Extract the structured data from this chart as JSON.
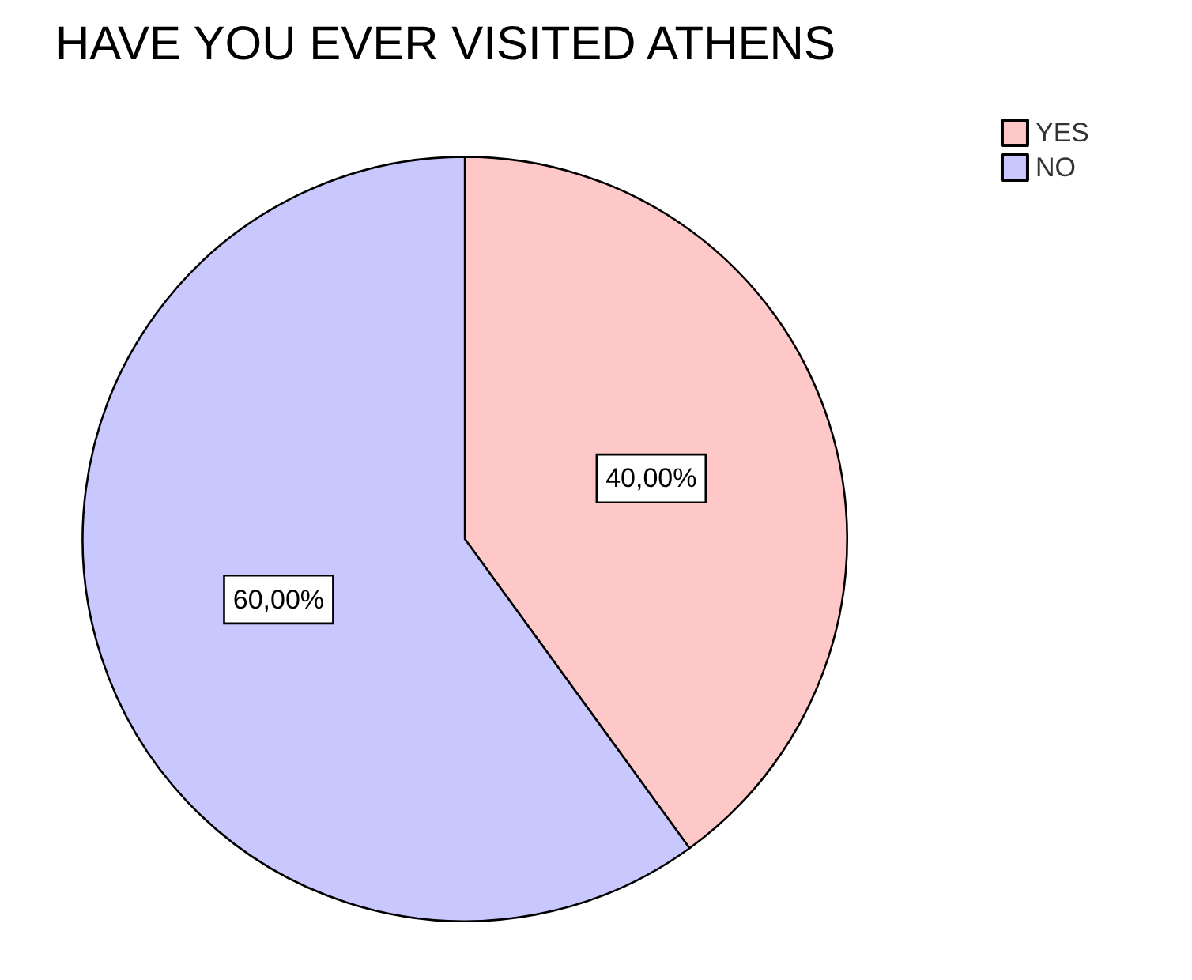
{
  "chart_data": {
    "type": "pie",
    "title": "HAVE YOU EVER VISITED ATHENS",
    "categories": [
      "YES",
      "NO"
    ],
    "values": [
      40,
      60
    ],
    "colors": [
      "#ffc8c8",
      "#c8c8ff"
    ],
    "value_labels": [
      "40,00%",
      "60,00%"
    ],
    "legend": "top right"
  }
}
